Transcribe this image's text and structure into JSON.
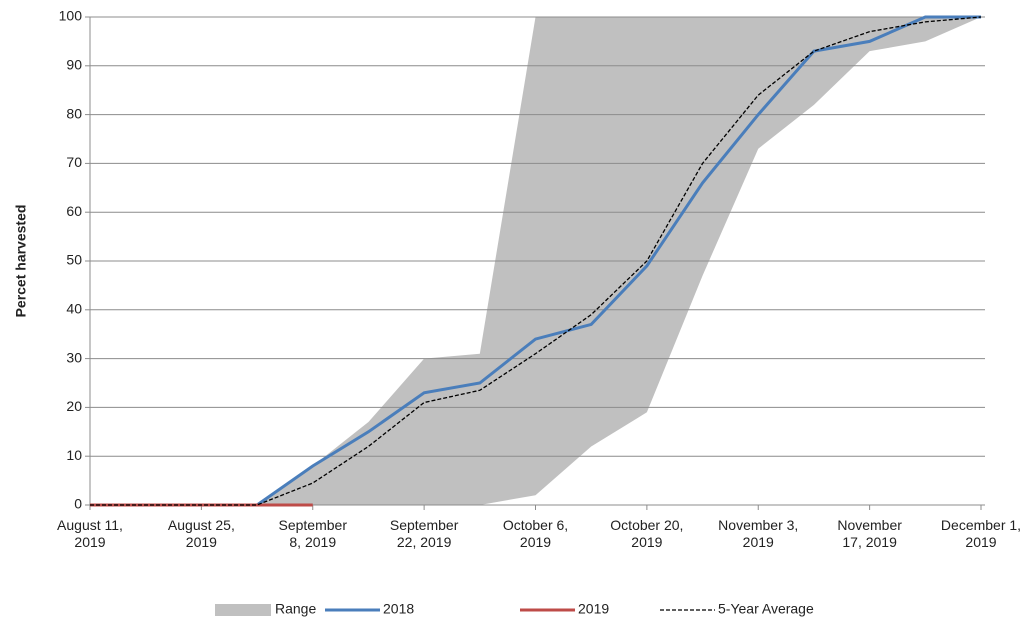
{
  "chart_data": {
    "type": "line",
    "y_label": "Percet harvested",
    "categories": [
      "August 11, 2019",
      null,
      "August 25, 2019",
      null,
      "September 8, 2019",
      null,
      "September 22, 2019",
      null,
      "October 6, 2019",
      null,
      "October 20, 2019",
      null,
      "November 3, 2019",
      null,
      "November 17, 2019",
      null,
      "December 1, 2019"
    ],
    "range": {
      "name": "Range",
      "color": "#c0c0c0",
      "low": [
        0,
        0,
        0,
        0,
        0,
        0,
        0,
        0,
        2,
        12,
        19,
        47,
        73,
        82,
        93,
        95,
        100
      ],
      "high": [
        0,
        0,
        0,
        0,
        8,
        17,
        30,
        31,
        100,
        100,
        100,
        100,
        100,
        100,
        100,
        100,
        100
      ]
    },
    "series": [
      {
        "name": "2018",
        "color": "#4a7ebb",
        "values": [
          0,
          0,
          0,
          0,
          8,
          15,
          23,
          25,
          34,
          37,
          49,
          66,
          80,
          93,
          95,
          100,
          100
        ]
      },
      {
        "name": "2019",
        "color": "#be4b48",
        "values": [
          0,
          0,
          0,
          0,
          0,
          null,
          null,
          null,
          null,
          null,
          null,
          null,
          null,
          null,
          null,
          null,
          null
        ]
      },
      {
        "name": "5-Year Average",
        "color": "#000000",
        "dashed": true,
        "values": [
          0,
          0,
          0,
          0,
          4.5,
          12,
          21,
          23.5,
          31,
          39,
          50,
          70,
          84,
          93,
          97,
          99,
          100
        ]
      }
    ],
    "ylim": [
      0,
      100
    ],
    "yticks": [
      0,
      10,
      20,
      30,
      40,
      50,
      60,
      70,
      80,
      90,
      100
    ],
    "grid": true
  }
}
